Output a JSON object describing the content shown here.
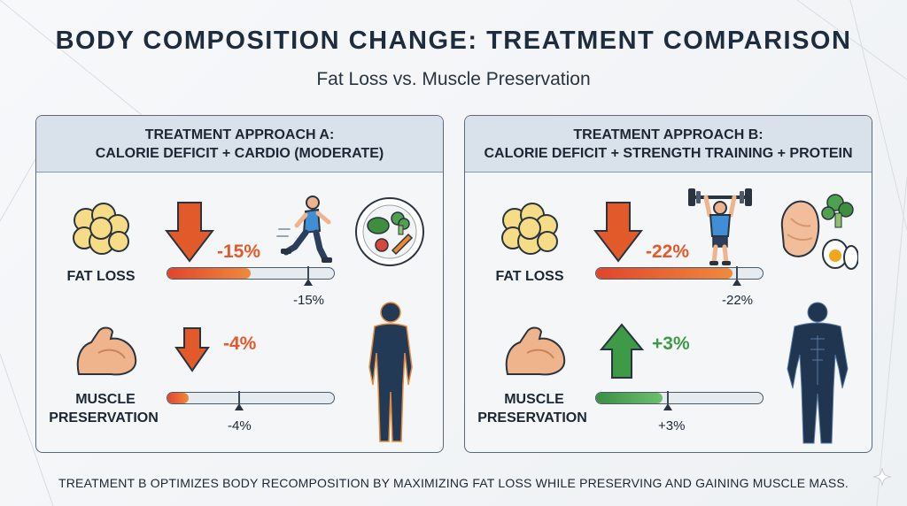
{
  "title": "BODY COMPOSITION CHANGE: TREATMENT COMPARISON",
  "subtitle": "Fat Loss vs. Muscle Preservation",
  "panels": [
    {
      "header_line1": "TREATMENT APPROACH A:",
      "header_line2": "CALORIE DEFICIT + CARDIO (MODERATE)",
      "fat_loss": {
        "label": "FAT LOSS",
        "change_text": "-15%",
        "bar_text": "-15%",
        "value": -15,
        "direction": "down"
      },
      "muscle": {
        "label_line1": "MUSCLE",
        "label_line2": "PRESERVATION",
        "change_text": "-4%",
        "bar_text": "-4%",
        "value": -4,
        "direction": "down"
      },
      "icons": {
        "activity": "runner-icon",
        "food": "vegetable-plate-icon",
        "body": "body-silhouette-icon"
      }
    },
    {
      "header_line1": "TREATMENT APPROACH B:",
      "header_line2": "CALORIE DEFICIT + STRENGTH TRAINING + PROTEIN",
      "fat_loss": {
        "label": "FAT LOSS",
        "change_text": "-22%",
        "bar_text": "-22%",
        "value": -22,
        "direction": "down"
      },
      "muscle": {
        "label_line1": "MUSCLE",
        "label_line2": "PRESERVATION",
        "change_text": "+3%",
        "bar_text": "+3%",
        "value": 3,
        "direction": "up"
      },
      "icons": {
        "activity": "weightlifter-icon",
        "food": "protein-food-icon",
        "body": "muscular-body-icon"
      }
    }
  ],
  "footer": "TREATMENT B OPTIMIZES BODY RECOMPOSITION BY MAXIMIZING FAT LOSS WHILE PRESERVING AND GAINING MUSCLE MASS.",
  "colors": {
    "decrease": "#e2592a",
    "increase": "#3f9a47",
    "header_bg": "#d9e1ea",
    "title": "#1e2d3d"
  }
}
